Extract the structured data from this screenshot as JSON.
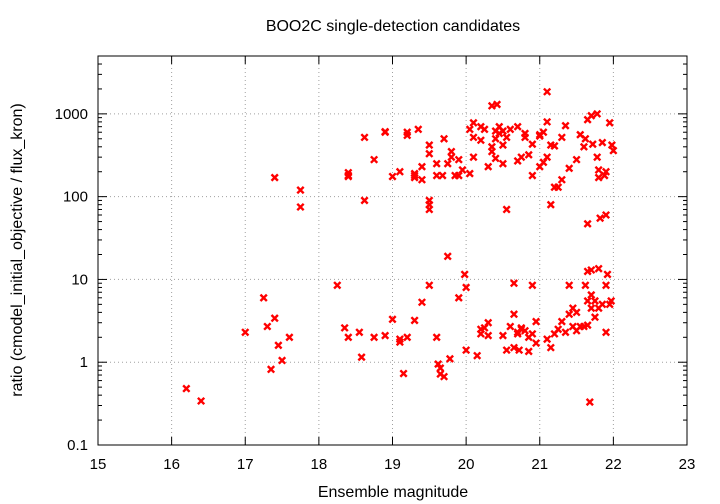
{
  "chart_data": {
    "type": "scatter",
    "title": "BOO2C single-detection candidates",
    "xlabel": "Ensemble magnitude",
    "ylabel": "ratio (cmodel_initial_objective / flux_kron)",
    "xlim": [
      15,
      23
    ],
    "ylim": [
      0.1,
      5000
    ],
    "yscale": "log",
    "grid": true,
    "x_ticks": [
      "15",
      "16",
      "17",
      "18",
      "19",
      "20",
      "21",
      "22",
      "23"
    ],
    "y_ticks": [
      {
        "value": 0.1,
        "label": "0.1"
      },
      {
        "value": 1,
        "label": "1"
      },
      {
        "value": 10,
        "label": "10"
      },
      {
        "value": 100,
        "label": "100"
      },
      {
        "value": 1000,
        "label": "1000"
      }
    ],
    "marker_color": "#ff0000",
    "series": [
      {
        "points": [
          [
            16.2,
            0.48
          ],
          [
            16.4,
            0.34
          ],
          [
            17.0,
            2.3
          ],
          [
            17.25,
            6.0
          ],
          [
            17.3,
            2.7
          ],
          [
            17.35,
            0.82
          ],
          [
            17.4,
            3.4
          ],
          [
            17.45,
            1.6
          ],
          [
            17.5,
            1.05
          ],
          [
            17.6,
            2.0
          ],
          [
            17.4,
            170
          ],
          [
            17.75,
            120
          ],
          [
            17.75,
            75
          ],
          [
            18.25,
            8.5
          ],
          [
            18.35,
            2.6
          ],
          [
            18.4,
            2.0
          ],
          [
            18.4,
            180
          ],
          [
            18.4,
            195
          ],
          [
            18.4,
            175
          ],
          [
            18.55,
            2.3
          ],
          [
            18.58,
            1.15
          ],
          [
            18.62,
            90
          ],
          [
            18.62,
            520
          ],
          [
            18.75,
            2.0
          ],
          [
            18.75,
            280
          ],
          [
            18.9,
            2.1
          ],
          [
            18.9,
            600
          ],
          [
            18.9,
            610
          ],
          [
            19.0,
            3.3
          ],
          [
            19.0,
            175
          ],
          [
            19.1,
            1.9
          ],
          [
            19.1,
            1.75
          ],
          [
            19.1,
            200
          ],
          [
            19.15,
            0.73
          ],
          [
            19.2,
            2.0
          ],
          [
            19.2,
            600
          ],
          [
            19.2,
            550
          ],
          [
            19.3,
            3.2
          ],
          [
            19.3,
            170
          ],
          [
            19.3,
            180
          ],
          [
            19.3,
            190
          ],
          [
            19.35,
            650
          ],
          [
            19.4,
            5.3
          ],
          [
            19.4,
            230
          ],
          [
            19.4,
            160
          ],
          [
            19.5,
            8.5
          ],
          [
            19.5,
            80
          ],
          [
            19.5,
            70
          ],
          [
            19.5,
            90
          ],
          [
            19.5,
            330
          ],
          [
            19.5,
            420
          ],
          [
            19.6,
            2.0
          ],
          [
            19.6,
            180
          ],
          [
            19.6,
            250
          ],
          [
            19.62,
            0.95
          ],
          [
            19.65,
            0.85
          ],
          [
            19.65,
            0.72
          ],
          [
            19.7,
            0.67
          ],
          [
            19.68,
            180
          ],
          [
            19.7,
            500
          ],
          [
            19.75,
            19.0
          ],
          [
            19.75,
            250
          ],
          [
            19.78,
            1.1
          ],
          [
            19.8,
            300
          ],
          [
            19.8,
            350
          ],
          [
            19.85,
            180
          ],
          [
            19.9,
            6.0
          ],
          [
            19.9,
            180
          ],
          [
            19.9,
            280
          ],
          [
            19.95,
            210
          ],
          [
            19.98,
            11.5
          ],
          [
            20.0,
            1.4
          ],
          [
            20.0,
            8.0
          ],
          [
            20.05,
            190
          ],
          [
            20.05,
            650
          ],
          [
            20.1,
            780
          ],
          [
            20.1,
            520
          ],
          [
            20.1,
            300
          ],
          [
            20.15,
            1.2
          ],
          [
            20.2,
            2.2
          ],
          [
            20.2,
            2.5
          ],
          [
            20.2,
            700
          ],
          [
            20.2,
            480
          ],
          [
            20.25,
            2.6
          ],
          [
            20.25,
            650
          ],
          [
            20.3,
            2.1
          ],
          [
            20.3,
            3.0
          ],
          [
            20.3,
            230
          ],
          [
            20.35,
            400
          ],
          [
            20.35,
            350
          ],
          [
            20.35,
            1250
          ],
          [
            20.4,
            500
          ],
          [
            20.4,
            620
          ],
          [
            20.4,
            290
          ],
          [
            20.42,
            1300
          ],
          [
            20.45,
            700
          ],
          [
            20.45,
            580
          ],
          [
            20.5,
            2.1
          ],
          [
            20.5,
            250
          ],
          [
            20.5,
            420
          ],
          [
            20.5,
            620
          ],
          [
            20.55,
            1.4
          ],
          [
            20.55,
            70
          ],
          [
            20.55,
            520
          ],
          [
            20.6,
            2.7
          ],
          [
            20.6,
            650
          ],
          [
            20.65,
            3.8
          ],
          [
            20.65,
            9.0
          ],
          [
            20.65,
            1.5
          ],
          [
            20.7,
            2.2
          ],
          [
            20.7,
            2.3
          ],
          [
            20.7,
            270
          ],
          [
            20.7,
            700
          ],
          [
            20.72,
            1.4
          ],
          [
            20.75,
            2.5
          ],
          [
            20.75,
            2.6
          ],
          [
            20.75,
            300
          ],
          [
            20.8,
            2.4
          ],
          [
            20.8,
            520
          ],
          [
            20.8,
            580
          ],
          [
            20.85,
            2.0
          ],
          [
            20.85,
            1.35
          ],
          [
            20.85,
            320
          ],
          [
            20.9,
            2.2
          ],
          [
            20.9,
            8.5
          ],
          [
            20.9,
            180
          ],
          [
            20.9,
            430
          ],
          [
            20.95,
            3.1
          ],
          [
            20.95,
            1.7
          ],
          [
            21.0,
            560
          ],
          [
            21.0,
            230
          ],
          [
            21.0,
            540
          ],
          [
            21.05,
            600
          ],
          [
            21.05,
            260
          ],
          [
            21.1,
            1.9
          ],
          [
            21.1,
            1850
          ],
          [
            21.1,
            800
          ],
          [
            21.1,
            300
          ],
          [
            21.15,
            1.5
          ],
          [
            21.15,
            80
          ],
          [
            21.15,
            420
          ],
          [
            21.2,
            2.2
          ],
          [
            21.2,
            130
          ],
          [
            21.2,
            410
          ],
          [
            21.25,
            2.5
          ],
          [
            21.25,
            130
          ],
          [
            21.3,
            3.1
          ],
          [
            21.3,
            520
          ],
          [
            21.3,
            160
          ],
          [
            21.35,
            2.3
          ],
          [
            21.35,
            720
          ],
          [
            21.4,
            3.8
          ],
          [
            21.4,
            8.5
          ],
          [
            21.4,
            220
          ],
          [
            21.45,
            4.5
          ],
          [
            21.45,
            2.7
          ],
          [
            21.5,
            4.0
          ],
          [
            21.5,
            2.4
          ],
          [
            21.5,
            280
          ],
          [
            21.55,
            2.7
          ],
          [
            21.55,
            560
          ],
          [
            21.6,
            2.7
          ],
          [
            21.6,
            400
          ],
          [
            21.62,
            8.5
          ],
          [
            21.62,
            500
          ],
          [
            21.65,
            12.5
          ],
          [
            21.65,
            5.5
          ],
          [
            21.65,
            2.8
          ],
          [
            21.65,
            47
          ],
          [
            21.65,
            850
          ],
          [
            21.68,
            0.33
          ],
          [
            21.7,
            4.5
          ],
          [
            21.7,
            6.5
          ],
          [
            21.7,
            13.0
          ],
          [
            21.7,
            950
          ],
          [
            21.72,
            430
          ],
          [
            21.75,
            5.5
          ],
          [
            21.75,
            3.5
          ],
          [
            21.78,
            1000
          ],
          [
            21.78,
            300
          ],
          [
            21.8,
            13.5
          ],
          [
            21.8,
            4.5
          ],
          [
            21.8,
            210
          ],
          [
            21.8,
            170
          ],
          [
            21.82,
            55
          ],
          [
            21.85,
            5.0
          ],
          [
            21.85,
            450
          ],
          [
            21.88,
            180
          ],
          [
            21.9,
            60
          ],
          [
            21.9,
            2.3
          ],
          [
            21.9,
            8.5
          ],
          [
            21.9,
            200
          ],
          [
            21.92,
            11.5
          ],
          [
            21.95,
            5.0
          ],
          [
            21.95,
            780
          ],
          [
            21.97,
            5.5
          ],
          [
            21.98,
            420
          ],
          [
            22.0,
            360
          ]
        ]
      }
    ]
  }
}
